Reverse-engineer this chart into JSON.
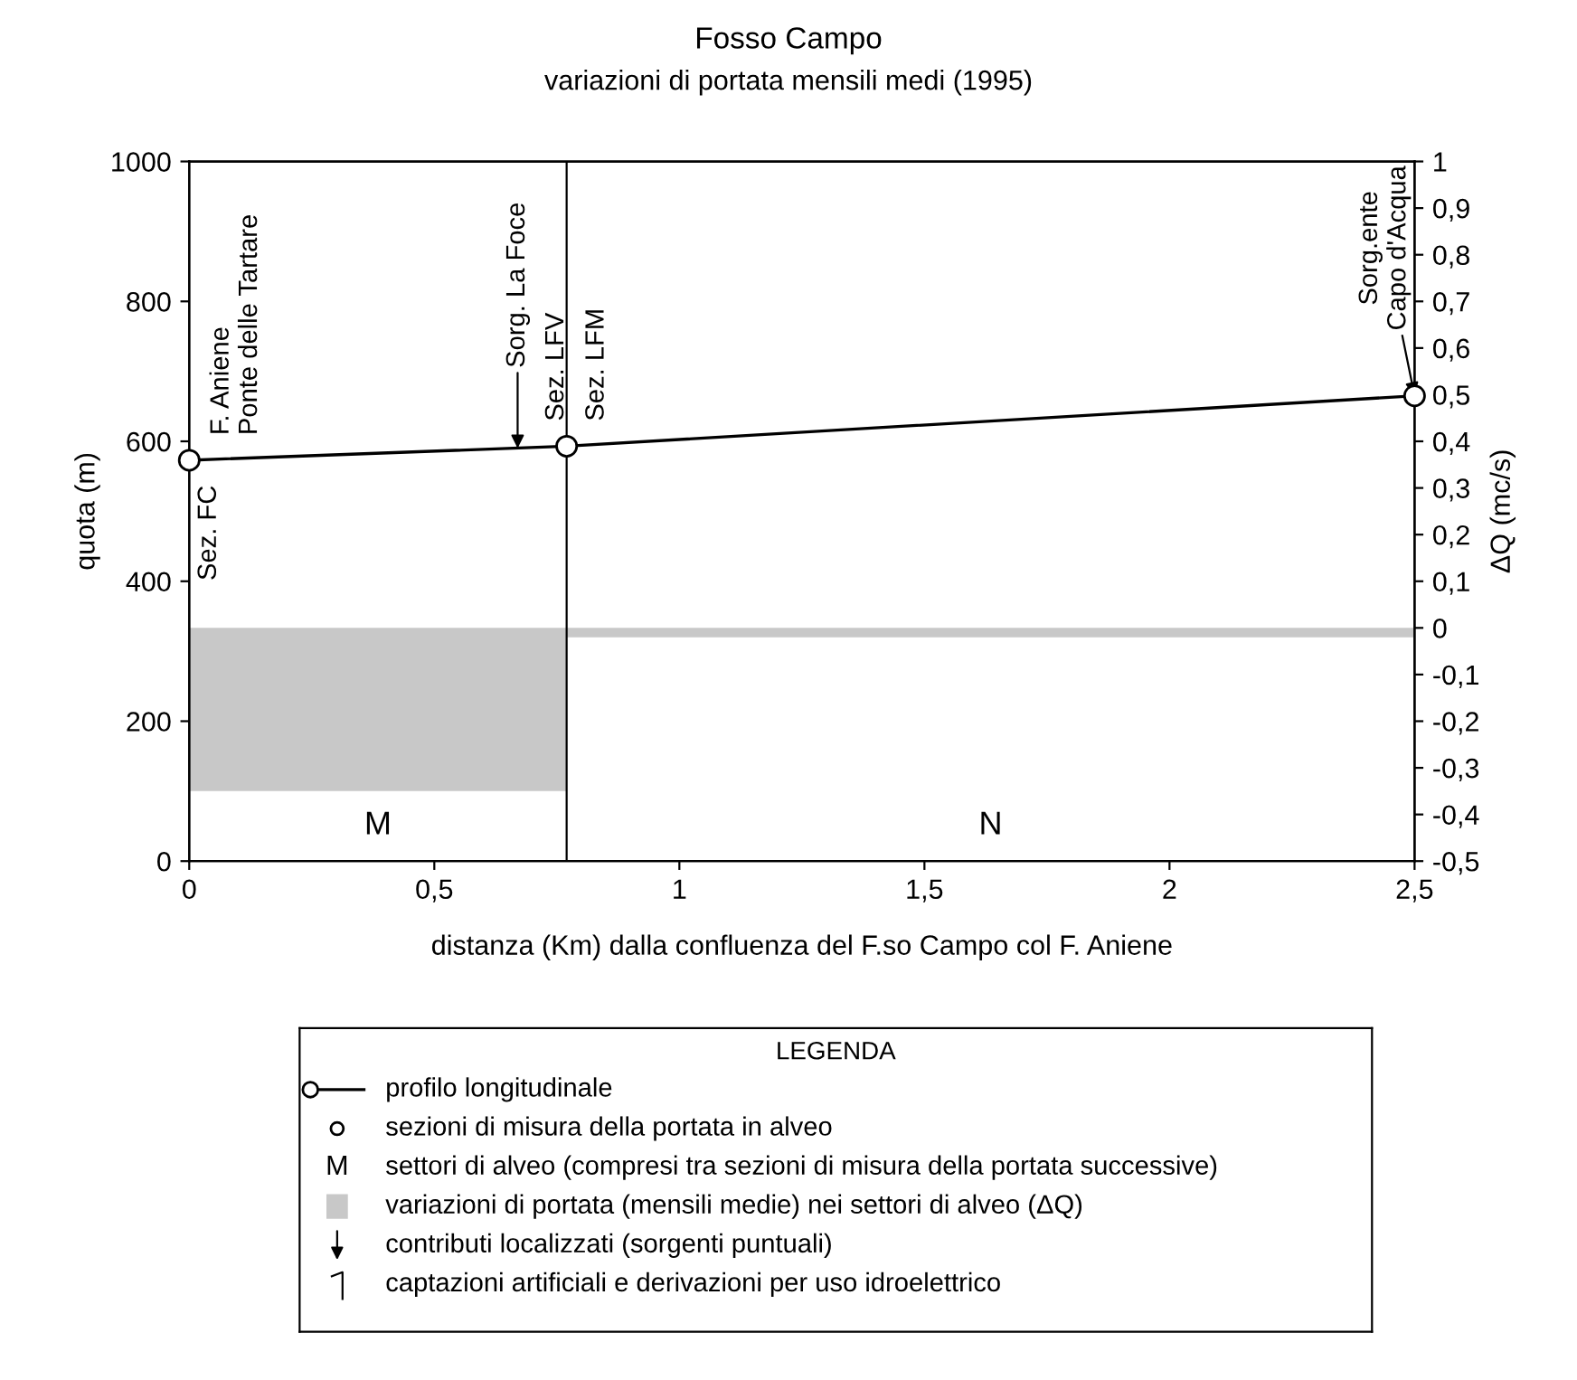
{
  "chart_data": {
    "type": "line",
    "title": "Fosso Campo",
    "subtitle": "variazioni di portata mensili medi (1995)",
    "xlabel": "distanza (Km) dalla confluenza del F.so Campo col F. Aniene",
    "ylabel": "quota (m)",
    "y2label": "ΔQ (mc/s)",
    "legend_title": "LEGENDA",
    "legend": "bottom",
    "grid": false,
    "series": [
      {
        "name": "profilo longitudinale",
        "color": "#000000",
        "marker": "circle",
        "x": [
          0,
          0.77,
          2.5
        ],
        "values": [
          573,
          593,
          665
        ]
      },
      {
        "name": "variazioni di portata (mensili medie) nei settori di alveo (ΔQ)",
        "type": "histogram",
        "axis": "y2",
        "color": "#c8c8c8",
        "bins": [
          0,
          0.77,
          2.5
        ],
        "values": [
          -0.35,
          -0.02
        ]
      }
    ],
    "ref_lines": [
      {
        "axis": "x",
        "value": 0.77,
        "label": null,
        "color": "#000000"
      }
    ],
    "annotations": [
      "sezioni di misura della portata in alveo",
      "settori di alveo (compresi tra sezioni di misura della portata successive)",
      "contributi localizzati (sorgenti puntuali)",
      "captazioni artificiali e derivazioni per uso idroelettrico",
      "M",
      "N",
      {
        "text": "Sez. FC",
        "x": 0,
        "y": 573
      },
      {
        "text": "F. Aniene\nPonte delle Tartare",
        "x": 0,
        "y": 573
      },
      {
        "text": "Sorg. La Foce",
        "x": 0.67,
        "y": 590
      },
      {
        "text": "Sez. LFV",
        "x": 0.77,
        "y": 593
      },
      {
        "text": "Sez. LFM",
        "x": 0.77,
        "y": 593
      },
      {
        "text": "Sorg.ente\nCapo d'Acqua",
        "x": 2.5,
        "y": 665
      }
    ],
    "xlim": [
      0,
      2.5
    ],
    "xticks": [
      0,
      {
        "value": 0.5,
        "label": "0,5"
      },
      1,
      {
        "value": 1.5,
        "label": "1,5"
      },
      2,
      {
        "value": 2.5,
        "label": "2,5"
      }
    ],
    "ylim": [
      0,
      1000
    ],
    "yticks": [
      0,
      200,
      400,
      600,
      800,
      1000
    ],
    "y2lim": [
      -0.5,
      1
    ],
    "y2ticks": [
      {
        "value": -0.5,
        "label": "-0,5"
      },
      {
        "value": -0.4,
        "label": "-0,4"
      },
      {
        "value": -0.3,
        "label": "-0,3"
      },
      {
        "value": -0.2,
        "label": "-0,2"
      },
      {
        "value": -0.1,
        "label": "-0,1"
      },
      0,
      {
        "value": 0.1,
        "label": "0,1"
      },
      {
        "value": 0.2,
        "label": "0,2"
      },
      {
        "value": 0.3,
        "label": "0,3"
      },
      {
        "value": 0.4,
        "label": "0,4"
      },
      {
        "value": 0.5,
        "label": "0,5"
      },
      {
        "value": 0.6,
        "label": "0,6"
      },
      {
        "value": 0.7,
        "label": "0,7"
      },
      {
        "value": 0.8,
        "label": "0,8"
      },
      {
        "value": 0.9,
        "label": "0,9"
      },
      1
    ]
  }
}
